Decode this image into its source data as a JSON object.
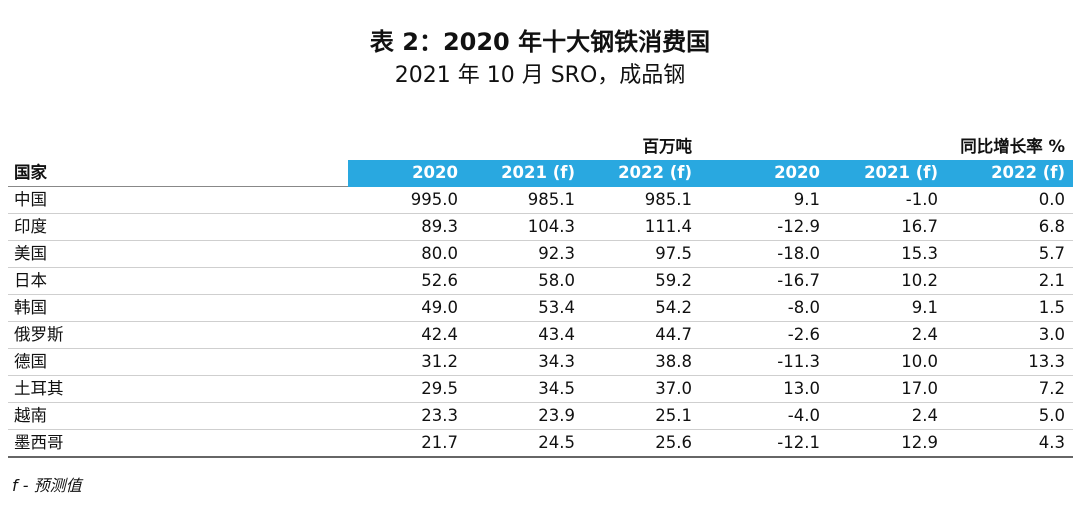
{
  "header": {
    "title": "表 2：2020 年十大钢铁消费国",
    "subtitle": "2021 年 10 月 SRO，成品钢"
  },
  "table": {
    "unit_labels": [
      "百万吨",
      "同比增长率 %"
    ],
    "columns": [
      "国家",
      "2020",
      "2021 (f)",
      "2022 (f)",
      "2020",
      "2021 (f)",
      "2022 (f)"
    ],
    "rows": [
      [
        "中国",
        "995.0",
        "985.1",
        "985.1",
        "9.1",
        "-1.0",
        "0.0"
      ],
      [
        "印度",
        "89.3",
        "104.3",
        "111.4",
        "-12.9",
        "16.7",
        "6.8"
      ],
      [
        "美国",
        "80.0",
        "92.3",
        "97.5",
        "-18.0",
        "15.3",
        "5.7"
      ],
      [
        "日本",
        "52.6",
        "58.0",
        "59.2",
        "-16.7",
        "10.2",
        "2.1"
      ],
      [
        "韩国",
        "49.0",
        "53.4",
        "54.2",
        "-8.0",
        "9.1",
        "1.5"
      ],
      [
        "俄罗斯",
        "42.4",
        "43.4",
        "44.7",
        "-2.6",
        "2.4",
        "3.0"
      ],
      [
        "德国",
        "31.2",
        "34.3",
        "38.8",
        "-11.3",
        "10.0",
        "13.3"
      ],
      [
        "土耳其",
        "29.5",
        "34.5",
        "37.0",
        "13.0",
        "17.0",
        "7.2"
      ],
      [
        "越南",
        "23.3",
        "23.9",
        "25.1",
        "-4.0",
        "2.4",
        "5.0"
      ],
      [
        "墨西哥",
        "21.7",
        "24.5",
        "25.6",
        "-12.1",
        "12.9",
        "4.3"
      ]
    ]
  },
  "footnote": "f - 预测值"
}
